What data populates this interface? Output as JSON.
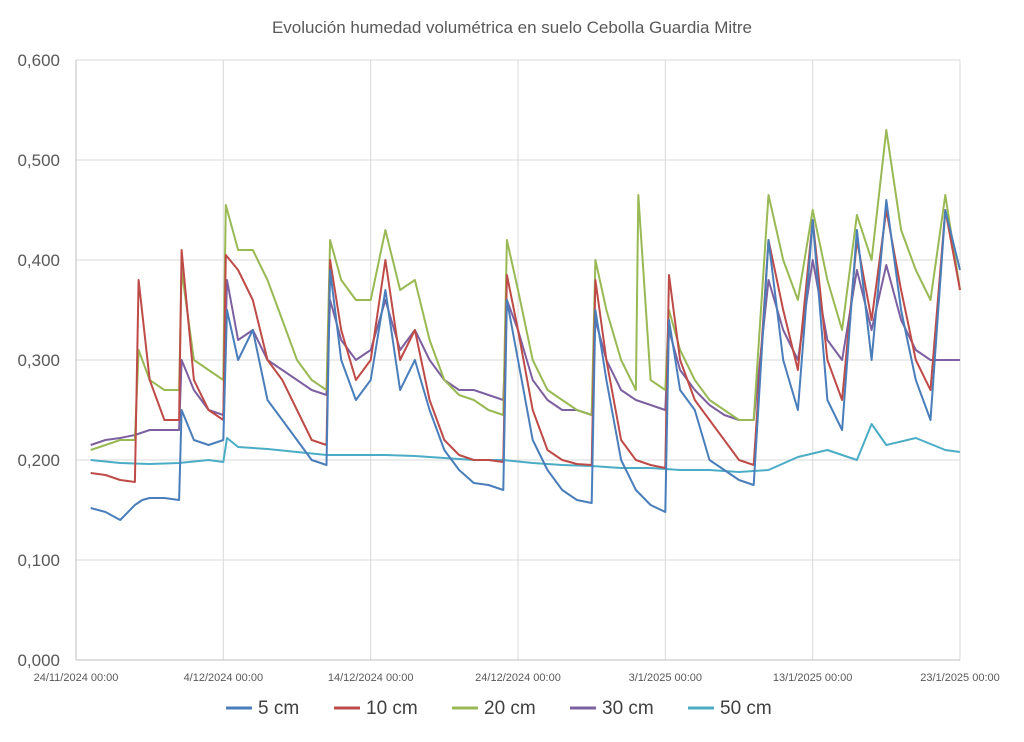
{
  "chart_data": {
    "type": "line",
    "title": "Evolución humedad volumétrica en suelo Cebolla Guardia Mitre",
    "xlabel": "",
    "ylabel": "",
    "ylim": [
      0,
      0.6
    ],
    "yticks": [
      0,
      0.1,
      0.2,
      0.3,
      0.4,
      0.5,
      0.6
    ],
    "ytick_labels": [
      "0,000",
      "0,100",
      "0,200",
      "0,300",
      "0,400",
      "0,500",
      "0,600"
    ],
    "xlim": [
      "2024-11-24",
      "2025-01-23"
    ],
    "xticks": [
      "2024-11-24",
      "2024-12-04",
      "2024-12-14",
      "2024-12-24",
      "2025-01-03",
      "2025-01-13",
      "2025-01-23"
    ],
    "xtick_labels": [
      "24/11/2024 00:00",
      "4/12/2024 00:00",
      "14/12/2024 00:00",
      "24/12/2024 00:00",
      "3/1/2025 00:00",
      "13/1/2025 00:00",
      "23/1/2025 00:00"
    ],
    "grid": true,
    "legend": "bottom",
    "series": [
      {
        "name": "5 cm",
        "color": "#4a7ebb",
        "x": [
          "2024-11-25",
          "2024-11-26",
          "2024-11-27",
          "2024-11-28",
          "2024-11-28T12",
          "2024-11-29",
          "2024-11-30",
          "2024-12-01",
          "2024-12-01T04",
          "2024-12-02",
          "2024-12-03",
          "2024-12-04",
          "2024-12-04T06",
          "2024-12-05",
          "2024-12-06",
          "2024-12-07",
          "2024-12-08",
          "2024-12-09",
          "2024-12-10",
          "2024-12-11",
          "2024-12-11T06",
          "2024-12-12",
          "2024-12-13",
          "2024-12-14",
          "2024-12-15",
          "2024-12-16",
          "2024-12-17",
          "2024-12-18",
          "2024-12-19",
          "2024-12-20",
          "2024-12-21",
          "2024-12-22",
          "2024-12-23",
          "2024-12-23T06",
          "2024-12-24",
          "2024-12-25",
          "2024-12-26",
          "2024-12-27",
          "2024-12-28",
          "2024-12-29",
          "2024-12-29T06",
          "2024-12-30",
          "2024-12-31",
          "2025-01-01",
          "2025-01-02",
          "2025-01-03",
          "2025-01-03T06",
          "2025-01-04",
          "2025-01-05",
          "2025-01-06",
          "2025-01-07",
          "2025-01-08",
          "2025-01-09",
          "2025-01-10",
          "2025-01-11",
          "2025-01-12",
          "2025-01-13",
          "2025-01-14",
          "2025-01-15",
          "2025-01-16",
          "2025-01-17",
          "2025-01-18",
          "2025-01-19",
          "2025-01-20",
          "2025-01-21",
          "2025-01-22",
          "2025-01-23"
        ],
        "values": [
          0.152,
          0.148,
          0.14,
          0.155,
          0.16,
          0.162,
          0.162,
          0.16,
          0.25,
          0.22,
          0.215,
          0.22,
          0.35,
          0.3,
          0.33,
          0.26,
          0.24,
          0.22,
          0.2,
          0.195,
          0.39,
          0.3,
          0.26,
          0.28,
          0.37,
          0.27,
          0.3,
          0.25,
          0.21,
          0.19,
          0.177,
          0.175,
          0.17,
          0.36,
          0.3,
          0.22,
          0.19,
          0.17,
          0.16,
          0.157,
          0.35,
          0.28,
          0.2,
          0.17,
          0.155,
          0.148,
          0.34,
          0.27,
          0.25,
          0.2,
          0.19,
          0.18,
          0.175,
          0.42,
          0.3,
          0.25,
          0.44,
          0.26,
          0.23,
          0.43,
          0.3,
          0.46,
          0.35,
          0.28,
          0.24,
          0.45,
          0.39
        ]
      },
      {
        "name": "10 cm",
        "color": "#be4b48",
        "x": [
          "2024-11-25",
          "2024-11-26",
          "2024-11-27",
          "2024-11-28",
          "2024-11-28T06",
          "2024-11-29",
          "2024-11-30",
          "2024-12-01",
          "2024-12-01T04",
          "2024-12-02",
          "2024-12-03",
          "2024-12-04",
          "2024-12-04T04",
          "2024-12-05",
          "2024-12-06",
          "2024-12-07",
          "2024-12-08",
          "2024-12-09",
          "2024-12-10",
          "2024-12-11",
          "2024-12-11T06",
          "2024-12-12",
          "2024-12-13",
          "2024-12-14",
          "2024-12-15",
          "2024-12-16",
          "2024-12-17",
          "2024-12-18",
          "2024-12-19",
          "2024-12-20",
          "2024-12-21",
          "2024-12-22",
          "2024-12-23",
          "2024-12-23T06",
          "2024-12-24",
          "2024-12-25",
          "2024-12-26",
          "2024-12-27",
          "2024-12-28",
          "2024-12-29",
          "2024-12-29T06",
          "2024-12-30",
          "2024-12-31",
          "2025-01-01",
          "2025-01-02",
          "2025-01-03",
          "2025-01-03T06",
          "2025-01-04",
          "2025-01-05",
          "2025-01-06",
          "2025-01-07",
          "2025-01-08",
          "2025-01-09",
          "2025-01-10",
          "2025-01-11",
          "2025-01-12",
          "2025-01-13",
          "2025-01-14",
          "2025-01-15",
          "2025-01-16",
          "2025-01-17",
          "2025-01-18",
          "2025-01-19",
          "2025-01-20",
          "2025-01-21",
          "2025-01-22",
          "2025-01-23"
        ],
        "values": [
          0.187,
          0.185,
          0.18,
          0.178,
          0.38,
          0.28,
          0.24,
          0.24,
          0.41,
          0.28,
          0.25,
          0.24,
          0.405,
          0.39,
          0.36,
          0.3,
          0.28,
          0.25,
          0.22,
          0.215,
          0.4,
          0.33,
          0.28,
          0.3,
          0.4,
          0.3,
          0.33,
          0.26,
          0.22,
          0.205,
          0.2,
          0.2,
          0.198,
          0.385,
          0.33,
          0.25,
          0.21,
          0.2,
          0.196,
          0.195,
          0.38,
          0.3,
          0.22,
          0.2,
          0.195,
          0.192,
          0.385,
          0.3,
          0.26,
          0.24,
          0.22,
          0.2,
          0.195,
          0.42,
          0.35,
          0.29,
          0.44,
          0.3,
          0.26,
          0.42,
          0.34,
          0.45,
          0.37,
          0.3,
          0.27,
          0.45,
          0.37
        ]
      },
      {
        "name": "20 cm",
        "color": "#98b954",
        "x": [
          "2024-11-25",
          "2024-11-26",
          "2024-11-27",
          "2024-11-28",
          "2024-11-28T06",
          "2024-11-29",
          "2024-11-30",
          "2024-12-01",
          "2024-12-01T04",
          "2024-12-02",
          "2024-12-03",
          "2024-12-04",
          "2024-12-04T04",
          "2024-12-05",
          "2024-12-06",
          "2024-12-07",
          "2024-12-08",
          "2024-12-09",
          "2024-12-10",
          "2024-12-11",
          "2024-12-11T06",
          "2024-12-12",
          "2024-12-13",
          "2024-12-14",
          "2024-12-15",
          "2024-12-16",
          "2024-12-17",
          "2024-12-18",
          "2024-12-19",
          "2024-12-20",
          "2024-12-21",
          "2024-12-22",
          "2024-12-23",
          "2024-12-23T06",
          "2024-12-24",
          "2024-12-25",
          "2024-12-26",
          "2024-12-27",
          "2024-12-28",
          "2024-12-29",
          "2024-12-29T06",
          "2024-12-30",
          "2024-12-31",
          "2025-01-01",
          "2025-01-01T04",
          "2025-01-02",
          "2025-01-03",
          "2025-01-03T06",
          "2025-01-04",
          "2025-01-05",
          "2025-01-06",
          "2025-01-07",
          "2025-01-08",
          "2025-01-09",
          "2025-01-10",
          "2025-01-11",
          "2025-01-12",
          "2025-01-13",
          "2025-01-14",
          "2025-01-15",
          "2025-01-16",
          "2025-01-17",
          "2025-01-18",
          "2025-01-19",
          "2025-01-20",
          "2025-01-21",
          "2025-01-22",
          "2025-01-23"
        ],
        "values": [
          0.21,
          0.215,
          0.22,
          0.22,
          0.31,
          0.28,
          0.27,
          0.27,
          0.39,
          0.3,
          0.29,
          0.28,
          0.455,
          0.41,
          0.41,
          0.38,
          0.34,
          0.3,
          0.28,
          0.27,
          0.42,
          0.38,
          0.36,
          0.36,
          0.43,
          0.37,
          0.38,
          0.32,
          0.28,
          0.265,
          0.26,
          0.25,
          0.245,
          0.42,
          0.37,
          0.3,
          0.27,
          0.26,
          0.25,
          0.245,
          0.4,
          0.35,
          0.3,
          0.27,
          0.465,
          0.28,
          0.27,
          0.35,
          0.31,
          0.28,
          0.26,
          0.25,
          0.24,
          0.24,
          0.465,
          0.4,
          0.36,
          0.45,
          0.38,
          0.33,
          0.445,
          0.4,
          0.53,
          0.43,
          0.39,
          0.36,
          0.465,
          0.37
        ]
      },
      {
        "name": "30 cm",
        "color": "#7d60a0",
        "x": [
          "2024-11-25",
          "2024-11-26",
          "2024-11-27",
          "2024-11-28",
          "2024-11-29",
          "2024-11-30",
          "2024-12-01",
          "2024-12-01T04",
          "2024-12-02",
          "2024-12-03",
          "2024-12-04",
          "2024-12-04T06",
          "2024-12-05",
          "2024-12-06",
          "2024-12-07",
          "2024-12-08",
          "2024-12-09",
          "2024-12-10",
          "2024-12-11",
          "2024-12-11T06",
          "2024-12-12",
          "2024-12-13",
          "2024-12-14",
          "2024-12-15",
          "2024-12-16",
          "2024-12-17",
          "2024-12-18",
          "2024-12-19",
          "2024-12-20",
          "2024-12-21",
          "2024-12-22",
          "2024-12-23",
          "2024-12-23T06",
          "2024-12-24",
          "2024-12-25",
          "2024-12-26",
          "2024-12-27",
          "2024-12-28",
          "2024-12-29",
          "2024-12-29T06",
          "2024-12-30",
          "2024-12-31",
          "2025-01-01",
          "2025-01-02",
          "2025-01-03",
          "2025-01-03T06",
          "2025-01-04",
          "2025-01-05",
          "2025-01-06",
          "2025-01-07",
          "2025-01-08",
          "2025-01-09",
          "2025-01-10",
          "2025-01-11",
          "2025-01-12",
          "2025-01-13",
          "2025-01-14",
          "2025-01-15",
          "2025-01-16",
          "2025-01-17",
          "2025-01-18",
          "2025-01-19",
          "2025-01-20",
          "2025-01-21",
          "2025-01-22",
          "2025-01-23"
        ],
        "values": [
          0.215,
          0.22,
          0.222,
          0.225,
          0.23,
          0.23,
          0.23,
          0.3,
          0.27,
          0.25,
          0.245,
          0.38,
          0.32,
          0.33,
          0.3,
          0.29,
          0.28,
          0.27,
          0.265,
          0.36,
          0.32,
          0.3,
          0.31,
          0.36,
          0.31,
          0.33,
          0.3,
          0.28,
          0.27,
          0.27,
          0.265,
          0.26,
          0.36,
          0.33,
          0.28,
          0.26,
          0.25,
          0.25,
          0.245,
          0.34,
          0.3,
          0.27,
          0.26,
          0.255,
          0.25,
          0.33,
          0.29,
          0.27,
          0.255,
          0.245,
          0.24,
          0.24,
          0.38,
          0.33,
          0.3,
          0.4,
          0.32,
          0.3,
          0.39,
          0.33,
          0.395,
          0.34,
          0.31,
          0.3,
          0.3,
          0.3
        ]
      },
      {
        "name": "50 cm",
        "color": "#4bacc6",
        "x": [
          "2024-11-25",
          "2024-11-27",
          "2024-11-29",
          "2024-12-01",
          "2024-12-03",
          "2024-12-04",
          "2024-12-04T06",
          "2024-12-05",
          "2024-12-07",
          "2024-12-09",
          "2024-12-11",
          "2024-12-13",
          "2024-12-15",
          "2024-12-17",
          "2024-12-19",
          "2024-12-21",
          "2024-12-23",
          "2024-12-25",
          "2024-12-27",
          "2024-12-29",
          "2024-12-31",
          "2025-01-02",
          "2025-01-04",
          "2025-01-06",
          "2025-01-08",
          "2025-01-10",
          "2025-01-12",
          "2025-01-14",
          "2025-01-16",
          "2025-01-17",
          "2025-01-18",
          "2025-01-20",
          "2025-01-22",
          "2025-01-23"
        ],
        "values": [
          0.2,
          0.197,
          0.196,
          0.197,
          0.2,
          0.198,
          0.222,
          0.213,
          0.211,
          0.208,
          0.205,
          0.205,
          0.205,
          0.204,
          0.202,
          0.2,
          0.2,
          0.197,
          0.195,
          0.194,
          0.192,
          0.192,
          0.19,
          0.19,
          0.188,
          0.19,
          0.203,
          0.21,
          0.2,
          0.236,
          0.215,
          0.222,
          0.21,
          0.208
        ]
      }
    ]
  }
}
